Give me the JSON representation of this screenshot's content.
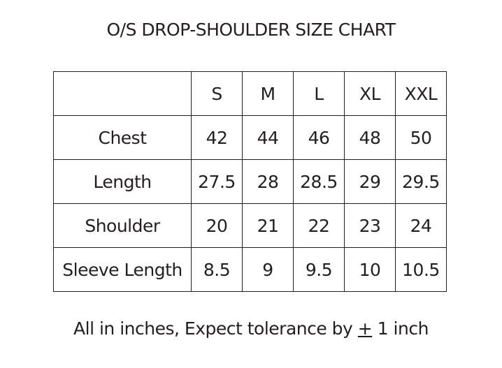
{
  "title": "O/S DROP-SHOULDER SIZE CHART",
  "table": {
    "columns": [
      "",
      "S",
      "M",
      "L",
      "XL",
      "XXL"
    ],
    "rows": [
      {
        "label": "Chest",
        "values": [
          "42",
          "44",
          "46",
          "48",
          "50"
        ]
      },
      {
        "label": "Length",
        "values": [
          "27.5",
          "28",
          "28.5",
          "29",
          "29.5"
        ]
      },
      {
        "label": "Shoulder",
        "values": [
          "20",
          "21",
          "22",
          "23",
          "24"
        ]
      },
      {
        "label": "Sleeve Length",
        "values": [
          "8.5",
          "9",
          "9.5",
          "10",
          "10.5"
        ]
      }
    ]
  },
  "footer": {
    "before": "All in inches, Expect tolerance by ",
    "symbol": "+",
    "after": " 1 inch"
  }
}
